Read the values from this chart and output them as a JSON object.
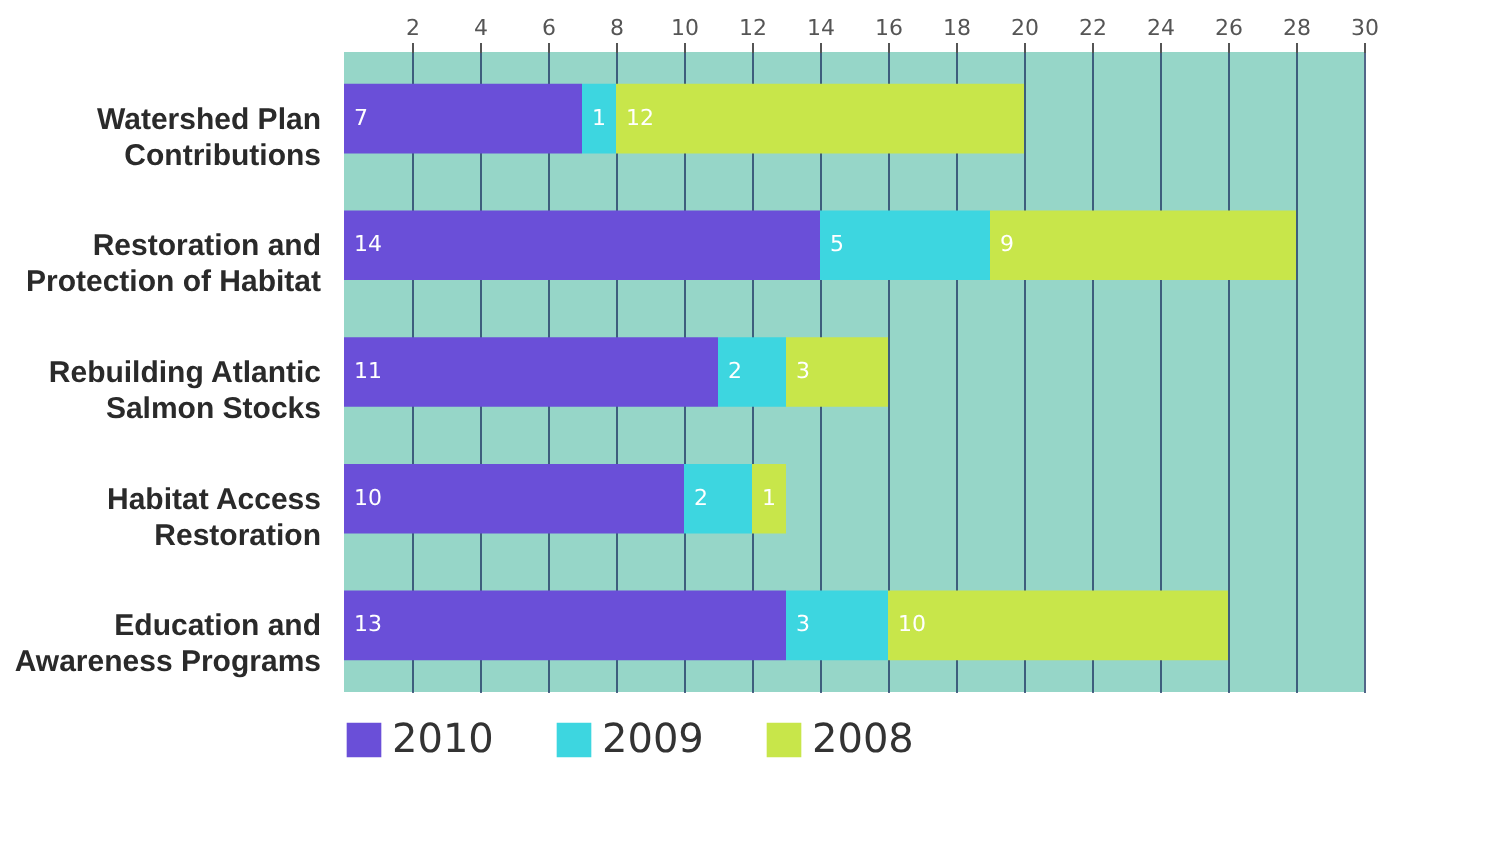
{
  "chart_data": {
    "type": "bar",
    "orientation": "horizontal",
    "stacked": true,
    "categories": [
      "Watershed Plan Contributions",
      "Restoration and Protection of Habitat",
      "Rebuilding Atlantic Salmon Stocks",
      "Habitat Access Restoration",
      "Education and Awareness Programs"
    ],
    "series": [
      {
        "name": "2010",
        "color": "#6a4fd8",
        "values": [
          7,
          14,
          11,
          10,
          13
        ]
      },
      {
        "name": "2009",
        "color": "#3dd6e0",
        "values": [
          1,
          5,
          2,
          2,
          3
        ]
      },
      {
        "name": "2008",
        "color": "#c8e64a",
        "values": [
          12,
          9,
          3,
          1,
          10
        ]
      }
    ],
    "xlim": [
      0,
      30
    ],
    "xticks": [
      2,
      4,
      6,
      8,
      10,
      12,
      14,
      16,
      18,
      20,
      22,
      24,
      26,
      28,
      30
    ],
    "grid": "x",
    "legend": "bottom",
    "data_labels": true
  }
}
